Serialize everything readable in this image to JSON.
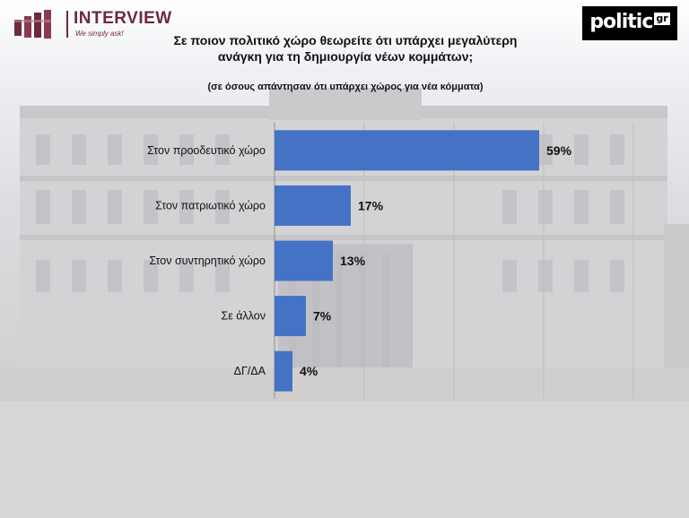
{
  "logos": {
    "interview": {
      "name": "INTERVIEW",
      "tagline": "We simply ask!"
    },
    "politic": {
      "name": "politic",
      "badge": "gr"
    }
  },
  "colors": {
    "bar": "#4472c4",
    "brand_interview": "#6d2a3c",
    "brand_politic": "#000000"
  },
  "chart_data": {
    "type": "bar",
    "orientation": "horizontal",
    "title": "Σε ποιον πολιτικό χώρο θεωρείτε ότι υπάρχει μεγαλύτερη ανάγκη για τη δημιουργία νέων κομμάτων;",
    "subtitle": "(σε όσους απάντησαν ότι υπάρχει χώρος για νέα κόμματα)",
    "categories": [
      "Στον προοδευτικό χώρο",
      "Στον πατριωτικό χώρο",
      "Στον συντηρητικό χώρο",
      "Σε άλλον",
      "ΔΓ/ΔΑ"
    ],
    "values": [
      59,
      17,
      13,
      7,
      4
    ],
    "value_labels": [
      "59%",
      "17%",
      "13%",
      "7%",
      "4%"
    ],
    "xlim": [
      0,
      80
    ],
    "grid": true,
    "legend": "none"
  }
}
